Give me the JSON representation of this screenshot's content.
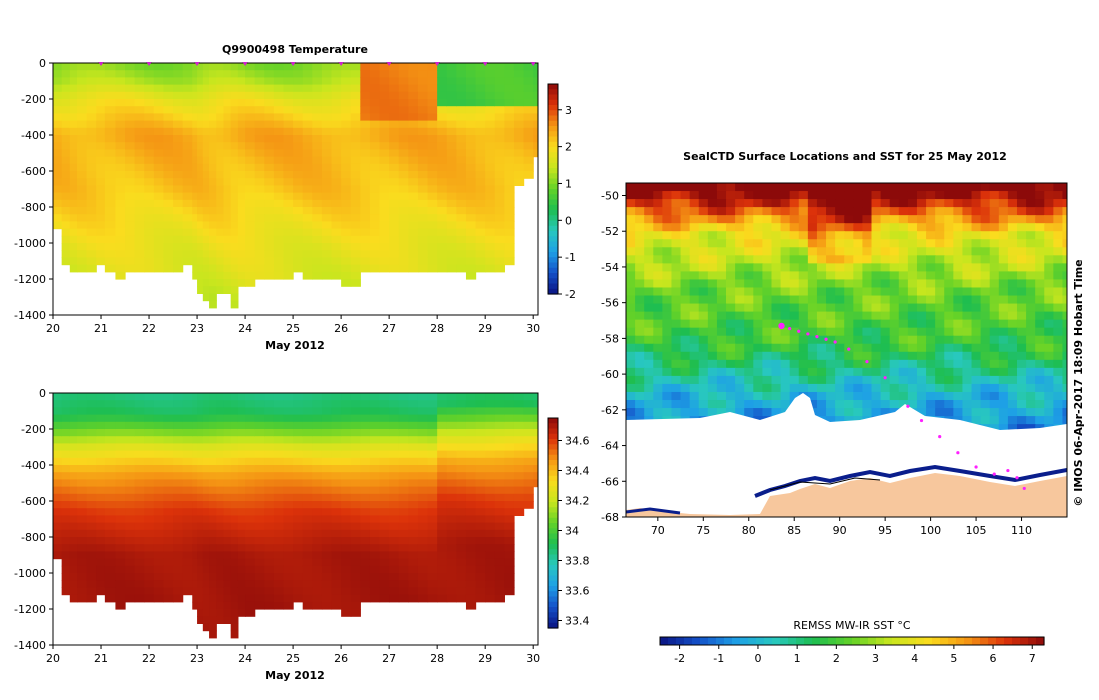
{
  "chart_data": [
    {
      "type": "heatmap",
      "title": "Q9900498  Temperature",
      "xlabel": "May 2012",
      "xticks": [
        "20",
        "21",
        "22",
        "23",
        "24",
        "25",
        "26",
        "27",
        "28",
        "29",
        "30"
      ],
      "yticks": [
        "0",
        "-200",
        "-400",
        "-600",
        "-800",
        "-1000",
        "-1200",
        "-1400"
      ],
      "xlim": [
        20,
        30.1
      ],
      "ylim": [
        -1400,
        0
      ],
      "colorbar": {
        "min": -2,
        "max": 3.7,
        "ticks": [
          "-2",
          "-1",
          "0",
          "1",
          "2",
          "3"
        ]
      },
      "profile_markers_x": [
        21,
        22,
        23,
        24,
        25,
        26,
        27,
        28,
        29,
        30
      ],
      "profile_times": [
        20.0,
        20.18,
        20.35,
        20.5,
        20.7,
        20.9,
        21.08,
        21.3,
        21.5,
        21.7,
        21.9,
        22.1,
        22.3,
        22.5,
        22.7,
        22.9,
        23.0,
        23.12,
        23.25,
        23.4,
        23.55,
        23.7,
        23.85,
        24.0,
        24.2,
        24.4,
        24.6,
        24.8,
        25.0,
        25.2,
        25.4,
        25.6,
        25.8,
        26.0,
        26.2,
        26.4,
        26.6,
        26.8,
        27.0,
        27.2,
        27.4,
        27.6,
        27.8,
        28.0,
        28.2,
        28.4,
        28.6,
        28.8,
        29.0,
        29.2,
        29.4,
        29.6,
        29.8,
        30.0
      ],
      "profile_max_depth": [
        -920,
        -1110,
        -1130,
        -1150,
        -1160,
        -1120,
        -1150,
        -1170,
        -1160,
        -1150,
        -1150,
        -1150,
        -1150,
        -1130,
        -1110,
        -1190,
        -1270,
        -1290,
        -1360,
        -1280,
        -1250,
        -1330,
        -1230,
        -1210,
        -1180,
        -1170,
        -1170,
        -1170,
        -1160,
        -1180,
        -1200,
        -1200,
        -1200,
        -1240,
        -1240,
        -1160,
        -1130,
        -1150,
        -1140,
        -1150,
        -1140,
        -1130,
        -1130,
        -1130,
        -1150,
        -1160,
        -1180,
        -1130,
        -1130,
        -1140,
        -1110,
        -650,
        -620,
        -500
      ],
      "temperature_profile": {
        "depths": [
          0,
          -100,
          -200,
          -400,
          -700,
          -1000,
          -1300
        ],
        "values": [
          1.0,
          1.3,
          1.8,
          2.4,
          2.2,
          1.8,
          1.5
        ]
      }
    },
    {
      "type": "heatmap",
      "title": "",
      "xlabel": "May 2012",
      "xticks": [
        "20",
        "21",
        "22",
        "23",
        "24",
        "25",
        "26",
        "27",
        "28",
        "29",
        "30"
      ],
      "yticks": [
        "0",
        "-200",
        "-400",
        "-600",
        "-800",
        "-1000",
        "-1200",
        "-1400"
      ],
      "xlim": [
        20,
        30.1
      ],
      "ylim": [
        -1400,
        0
      ],
      "colorbar": {
        "min": 33.35,
        "max": 34.75,
        "ticks": [
          "33.4",
          "33.6",
          "33.8",
          "34",
          "34.2",
          "34.4",
          "34.6"
        ]
      },
      "salinity_profile": {
        "depths": [
          0,
          -120,
          -200,
          -300,
          -450,
          -650,
          -900,
          -1400
        ],
        "values": [
          33.85,
          33.9,
          34.05,
          34.25,
          34.45,
          34.6,
          34.7,
          34.72
        ]
      }
    },
    {
      "type": "heatmap",
      "title": "SealCTD Surface Locations and SST for 25 May 2012",
      "xlabel": "",
      "ylabel": "",
      "xticks": [
        "70",
        "75",
        "80",
        "85",
        "90",
        "95",
        "100",
        "105",
        "110"
      ],
      "yticks": [
        "-50",
        "-52",
        "-54",
        "-56",
        "-58",
        "-60",
        "-62",
        "-64",
        "-66",
        "-68"
      ],
      "xlim": [
        66.5,
        115
      ],
      "ylim": [
        -68,
        -49.3
      ],
      "colorbar": {
        "label": "REMSS MW-IR SST °C",
        "min": -2.5,
        "max": 7.3,
        "ticks": [
          "-2",
          "-1",
          "0",
          "1",
          "2",
          "3",
          "4",
          "5",
          "6",
          "7"
        ]
      },
      "track_points": [
        [
          83.6,
          -57.3
        ],
        [
          84.5,
          -57.45
        ],
        [
          85.5,
          -57.6
        ],
        [
          86.5,
          -57.75
        ],
        [
          87.5,
          -57.9
        ],
        [
          88.5,
          -58.05
        ],
        [
          89.5,
          -58.2
        ],
        [
          91.0,
          -58.6
        ],
        [
          93.0,
          -59.3
        ],
        [
          95.0,
          -60.2
        ],
        [
          97.5,
          -61.8
        ],
        [
          99.0,
          -62.6
        ],
        [
          101.0,
          -63.5
        ],
        [
          103.0,
          -64.4
        ],
        [
          105.0,
          -65.2
        ],
        [
          107.0,
          -65.6
        ],
        [
          108.5,
          -65.4
        ],
        [
          109.5,
          -65.8
        ],
        [
          110.3,
          -66.4
        ]
      ],
      "annotation": "© IMOS 06-Apr-2017 18:09 Hobart Time"
    }
  ]
}
